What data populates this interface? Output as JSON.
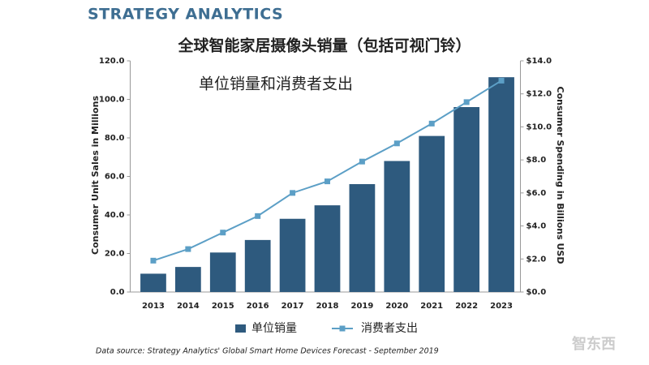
{
  "chart_data": {
    "type": "bar_line",
    "logo": "STRATEGY ANALYTICS",
    "title": "全球智能家居摄像头销量（包括可视门铃）",
    "subtitle": "单位销量和消费者支出",
    "y_label": "Consumer Unit Sales in Millions",
    "y2_label": "Consumer Spending in Billions USD",
    "source": "Data source: Strategy Analytics' Global Smart Home Devices Forecast - September 2019",
    "watermark": "智东西",
    "categories": [
      "2013",
      "2014",
      "2015",
      "2016",
      "2017",
      "2018",
      "2019",
      "2020",
      "2021",
      "2022",
      "2023"
    ],
    "series": [
      {
        "name": "单位销量",
        "color": "#2e5a7e",
        "kind": "bar",
        "values": [
          9.5,
          13,
          20.5,
          27,
          38,
          45,
          56,
          68,
          81,
          96,
          111.5
        ]
      },
      {
        "name": "消费者支出",
        "color": "#5c9fc6",
        "kind": "line",
        "axis": "y2",
        "values": [
          1.9,
          2.6,
          3.6,
          4.6,
          6.0,
          6.7,
          7.9,
          9.0,
          10.2,
          11.5,
          12.8
        ]
      }
    ],
    "ylim": [
      0,
      120
    ],
    "yticks": [
      {
        "value": 0,
        "label": "0.0"
      },
      {
        "value": 20,
        "label": "20.0"
      },
      {
        "value": 40,
        "label": "40.0"
      },
      {
        "value": 60,
        "label": "60.0"
      },
      {
        "value": 80,
        "label": "80.0"
      },
      {
        "value": 100,
        "label": "100.0"
      },
      {
        "value": 120,
        "label": "120.0"
      }
    ],
    "y2lim": [
      0,
      14
    ],
    "y2ticks": [
      {
        "value": 0,
        "label": "$0.0"
      },
      {
        "value": 2,
        "label": "$2.0"
      },
      {
        "value": 4,
        "label": "$4.0"
      },
      {
        "value": 6,
        "label": "$6.0"
      },
      {
        "value": 8,
        "label": "$8.0"
      },
      {
        "value": 10,
        "label": "$10.0"
      },
      {
        "value": 12,
        "label": "$12.0"
      },
      {
        "value": 14,
        "label": "$14.0"
      }
    ],
    "grid": false
  }
}
